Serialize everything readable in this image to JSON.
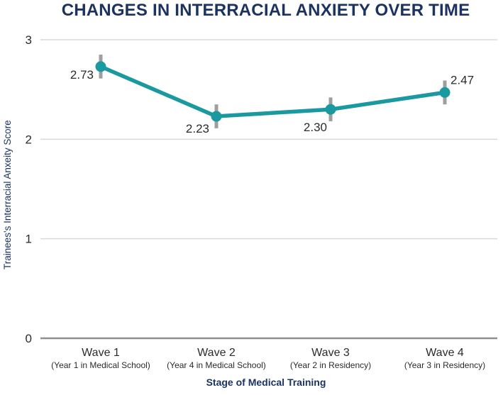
{
  "colors": {
    "navy": "#1C3362",
    "teal": "#1A99A1",
    "error_gray": "#9E9E9E",
    "gridline": "#D9D9D9",
    "axis_line": "#8F8F8F",
    "text_dark": "#2B2B2B",
    "background": "#FFFFFF"
  },
  "chart_data": {
    "type": "line",
    "title": "CHANGES IN INTERRACIAL ANXIETY OVER TIME",
    "xlabel": "Stage of Medical Training",
    "ylabel": "Trainees's Interracial Anxeity Score",
    "x": [
      "Wave 1",
      "Wave 2",
      "Wave 3",
      "Wave 4"
    ],
    "x_sublabels": [
      "(Year 1 in Medical School)",
      "(Year 4 in Medical School)",
      "(Year 2 in Residency)",
      "(Year 3 in Residency)"
    ],
    "values": [
      2.73,
      2.23,
      2.3,
      2.47
    ],
    "value_labels": [
      "2.73",
      "2.23",
      "2.30",
      "2.47"
    ],
    "error": [
      0.12,
      0.12,
      0.12,
      0.12
    ],
    "yticks": [
      0,
      1,
      2,
      3
    ],
    "ylim": [
      0,
      3
    ],
    "grid": true,
    "legend": false,
    "marker": "circle",
    "error_bars": true
  }
}
